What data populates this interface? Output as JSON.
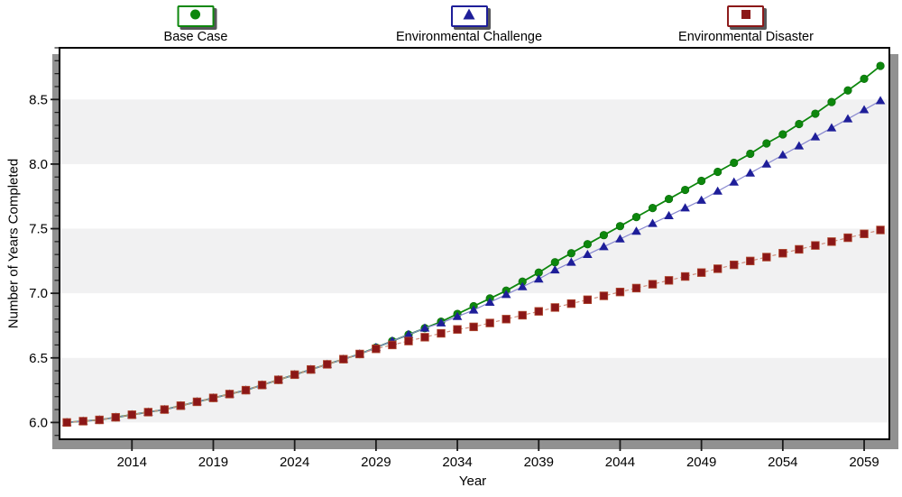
{
  "legend": {
    "items": [
      {
        "label": "Base Case",
        "marker": "circle",
        "color": "#0d870d"
      },
      {
        "label": "Environmental Challenge",
        "marker": "triangle",
        "color": "#1e1e99"
      },
      {
        "label": "Environmental Disaster",
        "marker": "square",
        "color": "#8b1717"
      }
    ]
  },
  "axes": {
    "x_title": "Year",
    "y_title": "Number of Years Completed"
  },
  "chart_data": {
    "type": "line",
    "title": "",
    "xlabel": "Year",
    "ylabel": "Number of Years Completed",
    "legend_position": "top",
    "grid": false,
    "band_color": "#f1f1f2",
    "bands": [
      [
        6.0,
        6.5
      ],
      [
        7.0,
        7.5
      ],
      [
        8.0,
        8.5
      ]
    ],
    "xlim": [
      2009.55,
      2060.55
    ],
    "ylim": [
      5.87,
      8.9
    ],
    "x_major_ticks": [
      2014,
      2019,
      2024,
      2029,
      2034,
      2039,
      2044,
      2049,
      2054,
      2059
    ],
    "y_major_ticks": [
      6.0,
      6.5,
      7.0,
      7.5,
      8.0,
      8.5
    ],
    "y_minor_step": 0.1,
    "x": [
      2010,
      2011,
      2012,
      2013,
      2014,
      2015,
      2016,
      2017,
      2018,
      2019,
      2020,
      2021,
      2022,
      2023,
      2024,
      2025,
      2026,
      2027,
      2028,
      2029,
      2030,
      2031,
      2032,
      2033,
      2034,
      2035,
      2036,
      2037,
      2038,
      2039,
      2040,
      2041,
      2042,
      2043,
      2044,
      2045,
      2046,
      2047,
      2048,
      2049,
      2050,
      2051,
      2052,
      2053,
      2054,
      2055,
      2056,
      2057,
      2058,
      2059,
      2060
    ],
    "series": [
      {
        "name": "Base Case",
        "marker": "circle",
        "marker_color": "#0d870d",
        "line_color": "#0d870d",
        "line_style": "solid",
        "values": [
          6.0,
          6.01,
          6.02,
          6.04,
          6.06,
          6.08,
          6.1,
          6.13,
          6.16,
          6.19,
          6.22,
          6.25,
          6.29,
          6.33,
          6.37,
          6.41,
          6.45,
          6.49,
          6.53,
          6.58,
          6.63,
          6.68,
          6.73,
          6.78,
          6.84,
          6.9,
          6.96,
          7.02,
          7.09,
          7.16,
          7.24,
          7.31,
          7.38,
          7.45,
          7.52,
          7.59,
          7.66,
          7.73,
          7.8,
          7.87,
          7.94,
          8.01,
          8.08,
          8.16,
          8.23,
          8.31,
          8.39,
          8.48,
          8.57,
          8.66,
          8.76
        ]
      },
      {
        "name": "Environmental Challenge",
        "marker": "triangle",
        "marker_color": "#1e1e99",
        "line_color": "#8787cf",
        "line_style": "solid",
        "values": [
          6.0,
          6.01,
          6.02,
          6.04,
          6.06,
          6.08,
          6.1,
          6.13,
          6.16,
          6.19,
          6.22,
          6.25,
          6.29,
          6.33,
          6.37,
          6.41,
          6.45,
          6.49,
          6.53,
          6.58,
          6.63,
          6.68,
          6.73,
          6.77,
          6.82,
          6.87,
          6.93,
          6.99,
          7.05,
          7.11,
          7.18,
          7.24,
          7.3,
          7.36,
          7.42,
          7.48,
          7.54,
          7.6,
          7.66,
          7.72,
          7.79,
          7.86,
          7.93,
          8.0,
          8.07,
          8.14,
          8.21,
          8.28,
          8.35,
          8.42,
          8.49
        ]
      },
      {
        "name": "Environmental Disaster",
        "marker": "square",
        "marker_color": "#8b1717",
        "line_color": "#cf8f7f",
        "line_style": "dashed",
        "values": [
          6.0,
          6.01,
          6.02,
          6.04,
          6.06,
          6.08,
          6.1,
          6.13,
          6.16,
          6.19,
          6.22,
          6.25,
          6.29,
          6.33,
          6.37,
          6.41,
          6.45,
          6.49,
          6.53,
          6.57,
          6.6,
          6.63,
          6.66,
          6.69,
          6.72,
          6.74,
          6.77,
          6.8,
          6.83,
          6.86,
          6.89,
          6.92,
          6.95,
          6.98,
          7.01,
          7.04,
          7.07,
          7.1,
          7.13,
          7.16,
          7.19,
          7.22,
          7.25,
          7.28,
          7.31,
          7.34,
          7.37,
          7.4,
          7.43,
          7.46,
          7.49
        ]
      }
    ]
  }
}
